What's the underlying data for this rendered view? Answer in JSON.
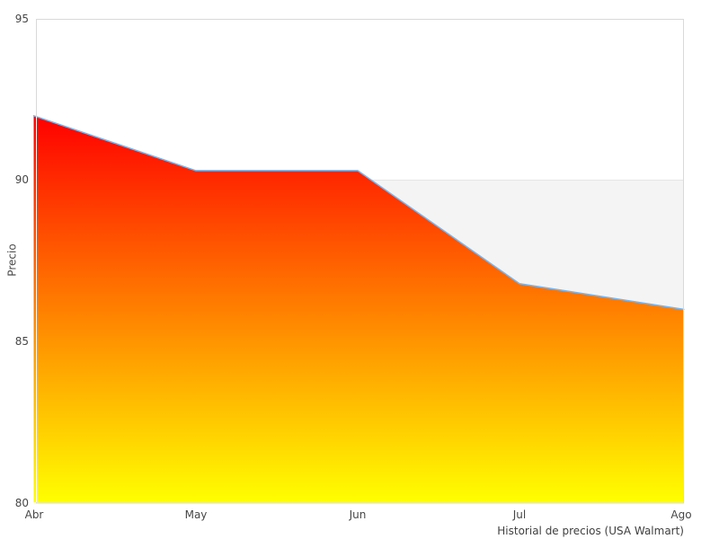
{
  "chart": {
    "y_axis": {
      "title": "Precio",
      "tick_labels": [
        "95",
        "90",
        "85",
        "80"
      ]
    },
    "x_axis": {
      "tick_labels": [
        "Abr",
        "May",
        "Jun",
        "Jul",
        "Ago"
      ]
    },
    "caption": "Historial de precios (USA Walmart)"
  },
  "chart_data": {
    "type": "area",
    "title": "",
    "x": [
      "Abr",
      "May",
      "Jun",
      "Jul",
      "Ago"
    ],
    "series": [
      {
        "name": "Precio",
        "values": [
          92,
          90.3,
          90.3,
          86.8,
          86
        ]
      }
    ],
    "xlabel": "",
    "ylabel": "Precio",
    "ylim": [
      80,
      95
    ],
    "yticks": [
      95,
      90,
      85,
      80
    ],
    "grid": "off",
    "legend": "none",
    "caption": "Historial de precios (USA Walmart)",
    "plot_band": {
      "from": 80,
      "to": 90,
      "color": "#f4f4f4"
    },
    "gridline_at_band_top_color": "#e6e6e6",
    "area_fill_gradient": {
      "top": "#ff0000",
      "bottom": "#ffff00"
    },
    "line_color": "#7cb5ec",
    "plot_border_color": "#d9d9d9",
    "axis_overlay_color": "rgba(255,255,255,0.8)",
    "background": "#ffffff",
    "text_color": "#474747"
  }
}
